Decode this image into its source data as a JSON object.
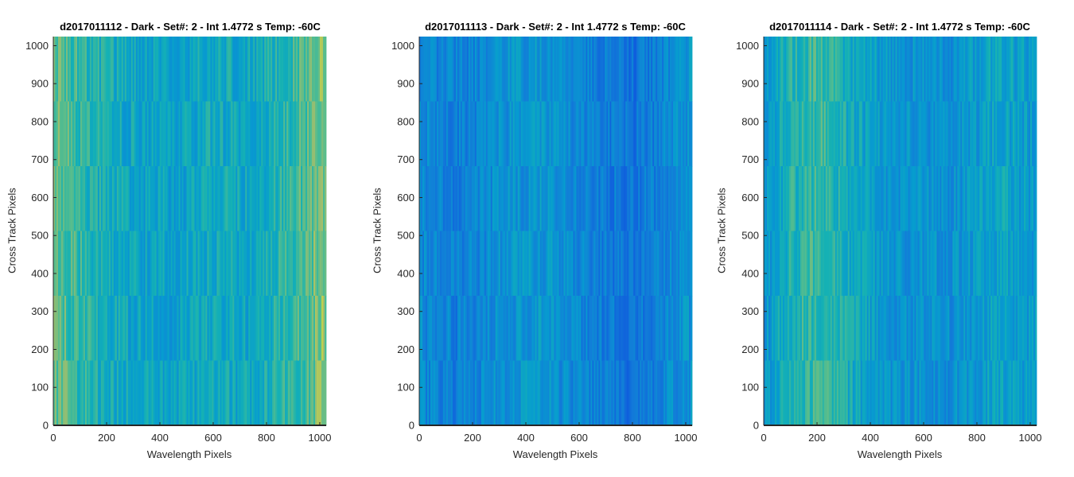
{
  "chart_data": [
    {
      "type": "heatmap",
      "title": "d2017011112 - Dark - Set#: 2 - Int 1.4772 s Temp: -60C",
      "xlabel": "Wavelength Pixels",
      "ylabel": "Cross Track Pixels",
      "xlim": [
        0,
        1024
      ],
      "ylim": [
        0,
        1024
      ],
      "xticks": [
        0,
        200,
        400,
        600,
        800,
        1000
      ],
      "yticks": [
        0,
        100,
        200,
        300,
        400,
        500,
        600,
        700,
        800,
        900,
        1000
      ],
      "colormap": "parula",
      "base_color": "#2aaec0",
      "column_profile": [
        {
          "x": 0,
          "level": 0.78
        },
        {
          "x": 150,
          "level": 0.62
        },
        {
          "x": 300,
          "level": 0.55
        },
        {
          "x": 450,
          "level": 0.52
        },
        {
          "x": 600,
          "level": 0.58
        },
        {
          "x": 750,
          "level": 0.55
        },
        {
          "x": 900,
          "level": 0.68
        },
        {
          "x": 1024,
          "level": 0.82
        }
      ],
      "grid": false
    },
    {
      "type": "heatmap",
      "title": "d2017011113 - Dark - Set#: 2 - Int 1.4772 s Temp: -60C",
      "xlabel": "Wavelength Pixels",
      "ylabel": "Cross Track Pixels",
      "xlim": [
        0,
        1024
      ],
      "ylim": [
        0,
        1024
      ],
      "xticks": [
        0,
        200,
        400,
        600,
        800,
        1000
      ],
      "yticks": [
        0,
        100,
        200,
        300,
        400,
        500,
        600,
        700,
        800,
        900,
        1000
      ],
      "colormap": "parula",
      "base_color": "#1f9bd4",
      "column_profile": [
        {
          "x": 0,
          "level": 0.42
        },
        {
          "x": 150,
          "level": 0.36
        },
        {
          "x": 300,
          "level": 0.44
        },
        {
          "x": 450,
          "level": 0.48
        },
        {
          "x": 600,
          "level": 0.4
        },
        {
          "x": 800,
          "level": 0.3
        },
        {
          "x": 950,
          "level": 0.42
        },
        {
          "x": 1024,
          "level": 0.46
        }
      ],
      "grid": false
    },
    {
      "type": "heatmap",
      "title": "d2017011114 - Dark - Set#: 2 - Int 1.4772 s Temp: -60C",
      "xlabel": "Wavelength Pixels",
      "ylabel": "Cross Track Pixels",
      "xlim": [
        0,
        1024
      ],
      "ylim": [
        0,
        1024
      ],
      "xticks": [
        0,
        200,
        400,
        600,
        800,
        1000
      ],
      "yticks": [
        0,
        100,
        200,
        300,
        400,
        500,
        600,
        700,
        800,
        900,
        1000
      ],
      "colormap": "parula",
      "base_color": "#27a9c6",
      "column_profile": [
        {
          "x": 0,
          "level": 0.45
        },
        {
          "x": 100,
          "level": 0.62
        },
        {
          "x": 200,
          "level": 0.7
        },
        {
          "x": 350,
          "level": 0.55
        },
        {
          "x": 500,
          "level": 0.46
        },
        {
          "x": 700,
          "level": 0.44
        },
        {
          "x": 900,
          "level": 0.55
        },
        {
          "x": 1024,
          "level": 0.48
        }
      ],
      "grid": false
    }
  ]
}
